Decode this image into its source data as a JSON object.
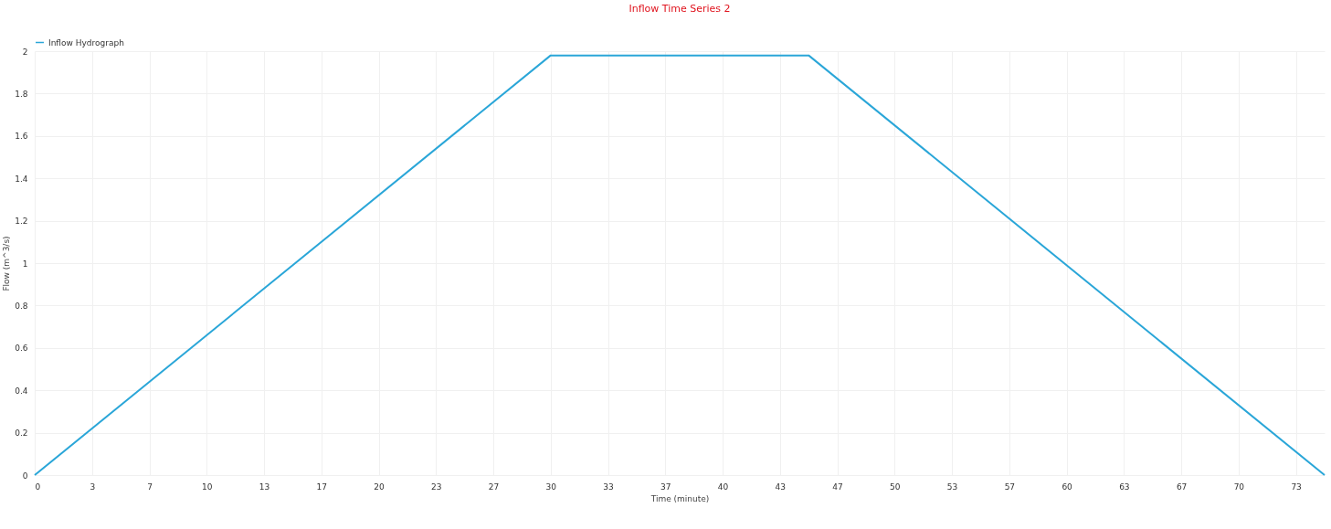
{
  "chart_data": {
    "type": "line",
    "title": "Inflow Time Series 2",
    "xlabel": "Time (minute)",
    "ylabel": "Flow (m^3/s)",
    "x": [
      0,
      30,
      45,
      75
    ],
    "series": [
      {
        "name": "Inflow Hydrograph",
        "color": "#2aa6d8",
        "values": [
          0,
          1.98,
          1.98,
          0
        ]
      }
    ],
    "xlim": [
      0,
      75
    ],
    "xticks": [
      0,
      {
        "value": 3.333,
        "label": "3"
      },
      {
        "value": 6.667,
        "label": "7"
      },
      10,
      {
        "value": 13.333,
        "label": "13"
      },
      {
        "value": 16.667,
        "label": "17"
      },
      20,
      {
        "value": 23.333,
        "label": "23"
      },
      {
        "value": 26.667,
        "label": "27"
      },
      30,
      {
        "value": 33.333,
        "label": "33"
      },
      {
        "value": 36.667,
        "label": "37"
      },
      40,
      {
        "value": 43.333,
        "label": "43"
      },
      {
        "value": 46.667,
        "label": "47"
      },
      50,
      {
        "value": 53.333,
        "label": "53"
      },
      {
        "value": 56.667,
        "label": "57"
      },
      60,
      {
        "value": 63.333,
        "label": "63"
      },
      {
        "value": 66.667,
        "label": "67"
      },
      70,
      {
        "value": 73.333,
        "label": "73"
      }
    ],
    "ylim": [
      0,
      2
    ],
    "yticks": [
      0,
      0.2,
      0.4,
      0.6,
      0.8,
      1,
      1.2,
      1.4,
      1.6,
      1.8,
      2
    ],
    "grid": true,
    "legend": "top",
    "marker": "none",
    "line_style": "solid"
  }
}
